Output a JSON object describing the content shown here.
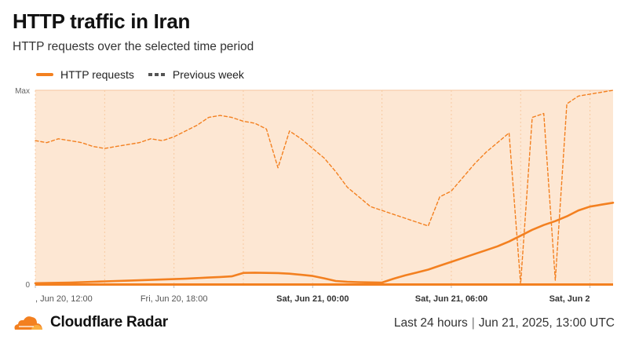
{
  "header": {
    "title": "HTTP traffic in Iran",
    "subtitle": "HTTP requests over the selected time period"
  },
  "legend": {
    "current": "HTTP requests",
    "previous": "Previous week"
  },
  "footer": {
    "brand": "Cloudflare Radar",
    "range": "Last 24 hours",
    "timestamp": "Jun 21, 2025, 13:00 UTC"
  },
  "colors": {
    "accent": "#f38020",
    "plot_background": "#fde7d3",
    "previous_line": "#f38020"
  },
  "chart_data": {
    "type": "line",
    "title": "HTTP traffic in Iran",
    "subtitle": "HTTP requests over the selected time period",
    "x_start": "Jun 20, 12:00",
    "x_step_hours": 0.5,
    "y_ticks": [
      {
        "value": 0,
        "label": "0"
      },
      {
        "value": 100,
        "label": "Max"
      }
    ],
    "ylim": [
      0,
      100
    ],
    "grid": true,
    "legend_position": "top-left",
    "x_ticks": [
      {
        "index": 0,
        "label": ", Jun 20, 12:00",
        "bold": false,
        "align": "start"
      },
      {
        "index": 12,
        "label": "Fri, Jun 20, 18:00",
        "bold": false,
        "align": "middle"
      },
      {
        "index": 24,
        "label": "Sat, Jun 21, 00:00",
        "bold": true,
        "align": "middle"
      },
      {
        "index": 36,
        "label": "Sat, Jun 21, 06:00",
        "bold": true,
        "align": "middle"
      },
      {
        "index": 48,
        "label": "Sat, Jun 2",
        "bold": true,
        "align": "end"
      }
    ],
    "series": [
      {
        "name": "HTTP requests",
        "style": "solid",
        "values": [
          0.5,
          0.6,
          0.7,
          0.8,
          1.0,
          1.2,
          1.4,
          1.6,
          1.8,
          2.0,
          2.2,
          2.4,
          2.6,
          2.8,
          3.1,
          3.4,
          3.7,
          4.0,
          5.8,
          5.9,
          5.8,
          5.7,
          5.4,
          4.8,
          4.2,
          3.0,
          1.6,
          1.2,
          1.0,
          0.9,
          0.8,
          2.8,
          4.5,
          6.0,
          7.5,
          9.5,
          11.5,
          13.5,
          15.5,
          17.5,
          19.5,
          22.0,
          25.0,
          28.0,
          30.5,
          32.5,
          35.0,
          38.0,
          40.0,
          41.0,
          42.0
        ]
      },
      {
        "name": "Previous week",
        "style": "dashed",
        "values": [
          74,
          73,
          75,
          74,
          73,
          71,
          70,
          71,
          72,
          73,
          75,
          74,
          76,
          79,
          82,
          86,
          87,
          86,
          84,
          83,
          80,
          60,
          79,
          75,
          70,
          65,
          58,
          50,
          45,
          40,
          38,
          36,
          34,
          32,
          30,
          45,
          48,
          55,
          62,
          68,
          73,
          78,
          0,
          86,
          88,
          2,
          93,
          97,
          98,
          99,
          100
        ]
      }
    ]
  }
}
